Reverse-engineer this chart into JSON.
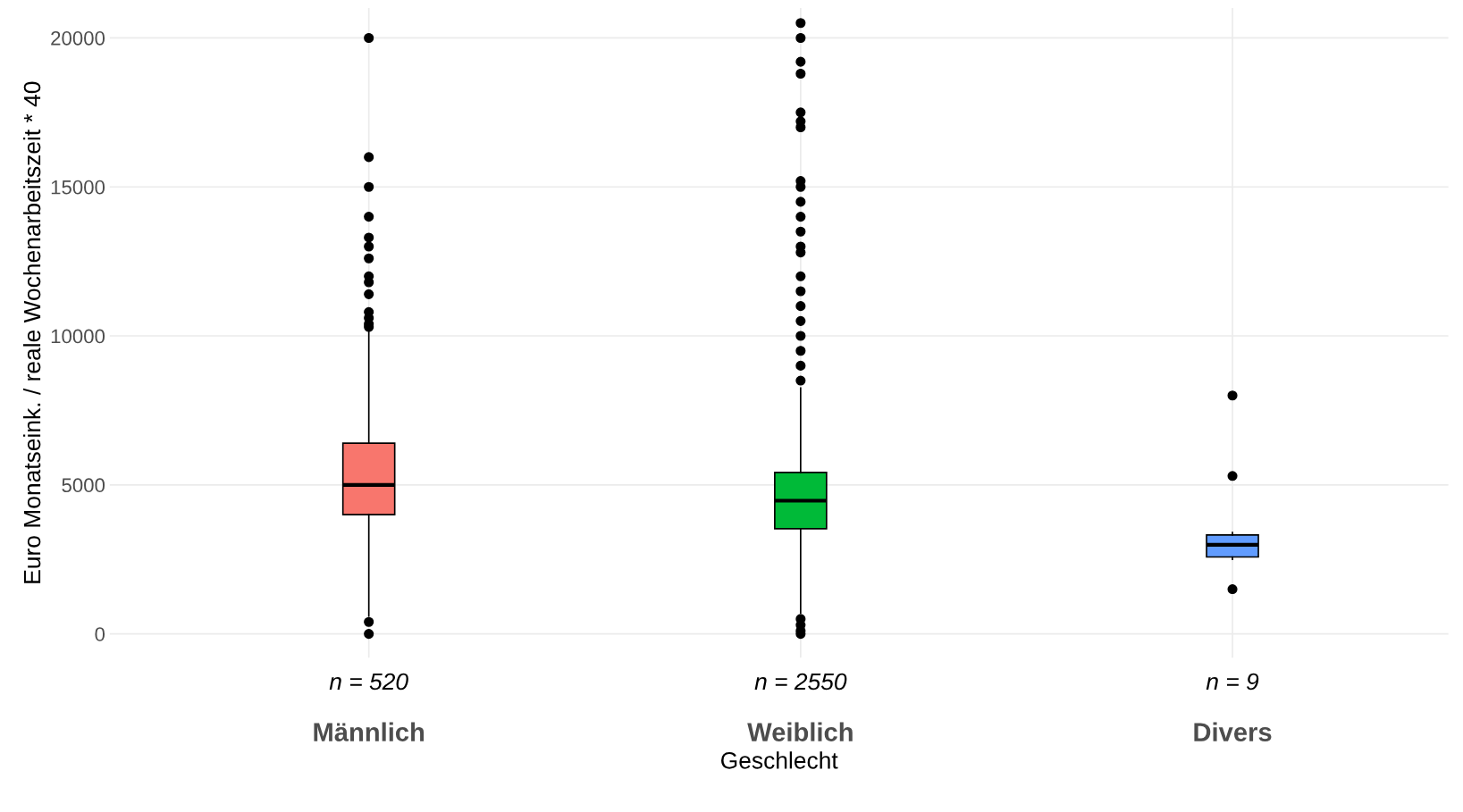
{
  "chart_data": {
    "type": "box",
    "categories": [
      "Männlich",
      "Weiblich",
      "Divers"
    ],
    "colors": [
      "#f8766d",
      "#00ba38",
      "#619cff"
    ],
    "boxes": [
      {
        "low": 600,
        "q1": 4000,
        "median": 5000,
        "q3": 6400,
        "high": 10200,
        "outliers": [
          20000,
          16000,
          15000,
          14000,
          13300,
          13000,
          12600,
          12000,
          11800,
          11400,
          10800,
          10600,
          10400,
          10300,
          400,
          0
        ]
      },
      {
        "low": 700,
        "q1": 3530,
        "median": 4470,
        "q3": 5420,
        "high": 8250,
        "outliers": [
          20500,
          20000,
          19200,
          18800,
          17500,
          17200,
          17000,
          15200,
          15000,
          14500,
          14000,
          13500,
          13000,
          12800,
          12000,
          11500,
          11000,
          10500,
          10000,
          9500,
          9000,
          8500,
          500,
          300,
          100,
          0
        ]
      },
      {
        "low": 2500,
        "q1": 2580,
        "median": 2990,
        "q3": 3320,
        "high": 3400,
        "outliers": [
          8000,
          5300,
          1500
        ]
      }
    ],
    "annotations": [
      "n = 520",
      "n = 2550",
      "n = 9"
    ],
    "xlabel": "Geschlecht",
    "ylabel": "Euro Monatseink. / reale Wochenarbeitszeit * 40",
    "ylim": [
      -800,
      21000
    ],
    "yticks": [
      0,
      5000,
      10000,
      15000,
      20000
    ],
    "grid": true
  }
}
